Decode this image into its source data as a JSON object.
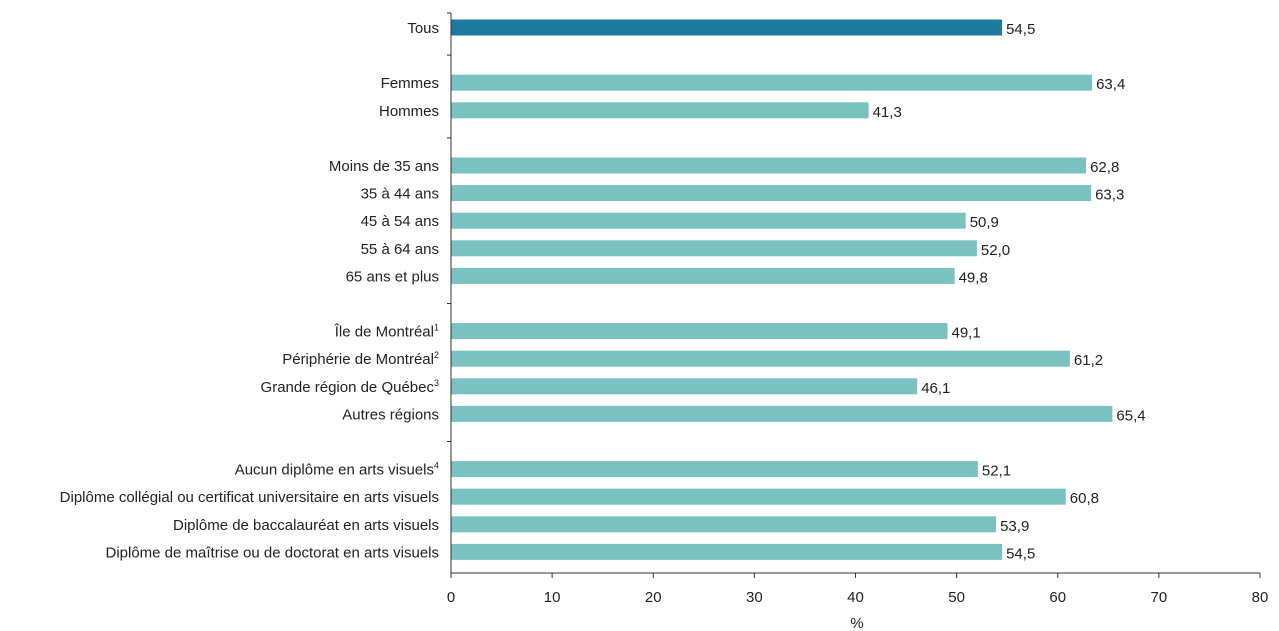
{
  "chart_data": {
    "type": "bar",
    "orientation": "horizontal",
    "xlabel": "%",
    "xlim": [
      0,
      80
    ],
    "xticks": [
      "0",
      "10",
      "20",
      "30",
      "40",
      "50",
      "60",
      "70",
      "80"
    ],
    "grid": false,
    "highlight_color": "#1b7a9e",
    "bar_color": "#7ac2c2",
    "groups": [
      {
        "items": [
          {
            "label": "Tous",
            "sup": "",
            "value": 54.5,
            "value_label": "54,5",
            "highlight": true
          }
        ]
      },
      {
        "items": [
          {
            "label": "Femmes",
            "sup": "",
            "value": 63.4,
            "value_label": "63,4"
          },
          {
            "label": "Hommes",
            "sup": "",
            "value": 41.3,
            "value_label": "41,3"
          }
        ]
      },
      {
        "items": [
          {
            "label": "Moins de 35 ans",
            "sup": "",
            "value": 62.8,
            "value_label": "62,8"
          },
          {
            "label": "35 à 44 ans",
            "sup": "",
            "value": 63.3,
            "value_label": "63,3"
          },
          {
            "label": "45 à 54 ans",
            "sup": "",
            "value": 50.9,
            "value_label": "50,9"
          },
          {
            "label": "55 à 64 ans",
            "sup": "",
            "value": 52.0,
            "value_label": "52,0"
          },
          {
            "label": "65 ans et plus",
            "sup": "",
            "value": 49.8,
            "value_label": "49,8"
          }
        ]
      },
      {
        "items": [
          {
            "label": "Île de Montréal",
            "sup": "1",
            "value": 49.1,
            "value_label": "49,1"
          },
          {
            "label": "Périphérie de Montréal",
            "sup": "2",
            "value": 61.2,
            "value_label": "61,2"
          },
          {
            "label": "Grande région de Québec",
            "sup": "3",
            "value": 46.1,
            "value_label": "46,1"
          },
          {
            "label": "Autres régions",
            "sup": "",
            "value": 65.4,
            "value_label": "65,4"
          }
        ]
      },
      {
        "items": [
          {
            "label": "Aucun diplôme en arts visuels",
            "sup": "4",
            "value": 52.1,
            "value_label": "52,1"
          },
          {
            "label": "Diplôme collégial ou certificat universitaire en arts visuels",
            "sup": "",
            "value": 60.8,
            "value_label": "60,8"
          },
          {
            "label": "Diplôme de baccalauréat en arts visuels",
            "sup": "",
            "value": 53.9,
            "value_label": "53,9"
          },
          {
            "label": "Diplôme de maîtrise ou de doctorat en arts visuels",
            "sup": "",
            "value": 54.5,
            "value_label": "54,5"
          }
        ]
      }
    ]
  }
}
